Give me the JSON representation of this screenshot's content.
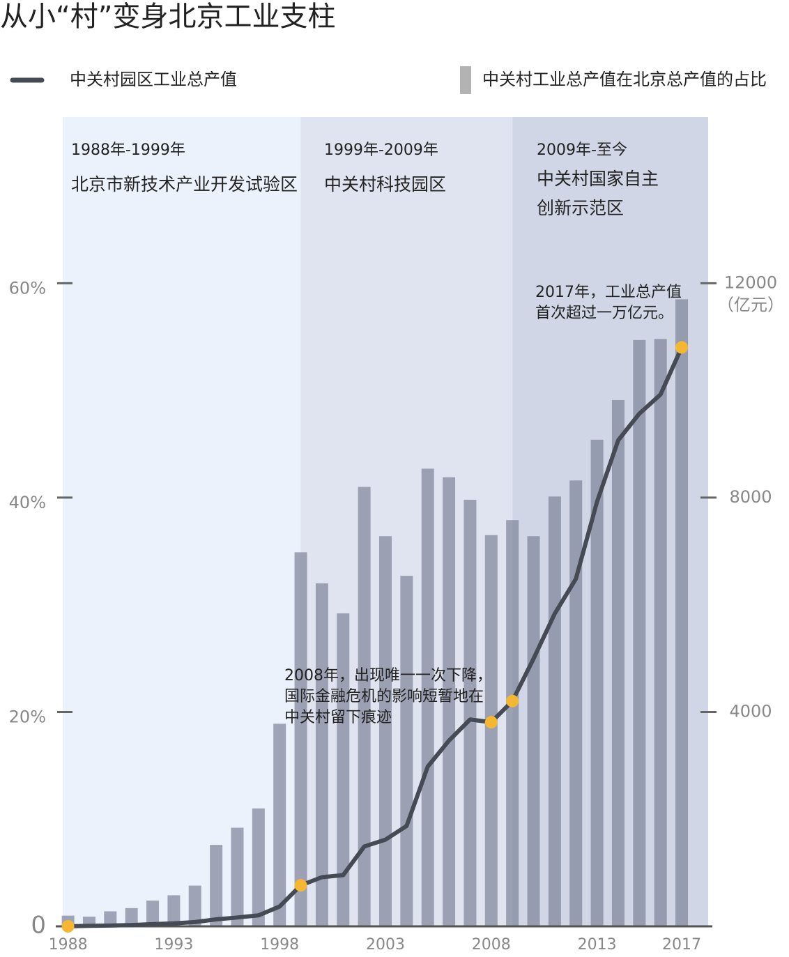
{
  "chart_data": {
    "type": "combo",
    "title": "从小“村”变身北京工业支柱",
    "x": [
      1988,
      1989,
      1990,
      1991,
      1992,
      1993,
      1994,
      1995,
      1996,
      1997,
      1998,
      1999,
      2000,
      2001,
      2002,
      2003,
      2004,
      2005,
      2006,
      2007,
      2008,
      2009,
      2010,
      2011,
      2012,
      2013,
      2014,
      2015,
      2016,
      2017
    ],
    "xlim": [
      1987.75,
      2018.25
    ],
    "xticks": [
      1988,
      1993,
      1998,
      2003,
      2008,
      2013,
      2017
    ],
    "ylim": [
      0,
      75.5
    ],
    "yticks": [
      0,
      {
        "value": 20,
        "label": "20%"
      },
      {
        "value": 40,
        "label": "40%"
      },
      {
        "value": 60,
        "label": "60%"
      }
    ],
    "y2lim": [
      0,
      15100
    ],
    "y2ticks": [
      4000,
      8000,
      12000
    ],
    "y2_unit": "（亿元）",
    "series": [
      {
        "name": "中关村工业总产值在北京总产值的占比",
        "type": "bar",
        "color": "#80859a",
        "values": [
          1.0,
          0.9,
          1.4,
          1.7,
          2.4,
          2.9,
          3.8,
          7.6,
          9.2,
          11.0,
          18.9,
          34.9,
          32.0,
          29.2,
          41.0,
          36.4,
          32.7,
          42.7,
          41.9,
          39.8,
          36.5,
          37.9,
          36.4,
          40.1,
          41.6,
          45.4,
          49.1,
          54.7,
          54.8,
          58.5
        ]
      },
      {
        "name": "中关村园区工业总产值",
        "type": "line",
        "axis": "y2",
        "color": "#454a55",
        "highlight_color": "#f5b731",
        "highlight_indices": [
          0,
          11,
          20,
          21,
          29
        ],
        "values": [
          0,
          10,
          15,
          25,
          40,
          55,
          80,
          130,
          165,
          205,
          370,
          765,
          917,
          955,
          1490,
          1618,
          1873,
          2981,
          3465,
          3860,
          3809,
          4204,
          4994,
          5834,
          6484,
          7924,
          9070,
          9567,
          9924,
          10803
        ]
      }
    ],
    "period_bounds": [
      1999,
      2009
    ],
    "period_colors": [
      "#ebf2fb",
      "#e0e4f0",
      "#d0d6e6"
    ],
    "periods": [
      {
        "lines": [
          "1988年-1999年",
          "北京市新技术产业开发试验区"
        ]
      },
      {
        "lines": [
          "1999年-2009年",
          "中关村科技园区"
        ]
      },
      {
        "lines": [
          "2009年-至今",
          "中关村国家自主",
          "创新示范区"
        ]
      }
    ],
    "annotations": [
      {
        "lines": [
          "2008年，出现唯一一次下降，",
          "国际金融危机的影响短暂地在",
          "中关村留下痕迹"
        ]
      },
      {
        "lines": [
          "2017年，工业总产值",
          "首次超过一万亿元。"
        ]
      }
    ]
  }
}
